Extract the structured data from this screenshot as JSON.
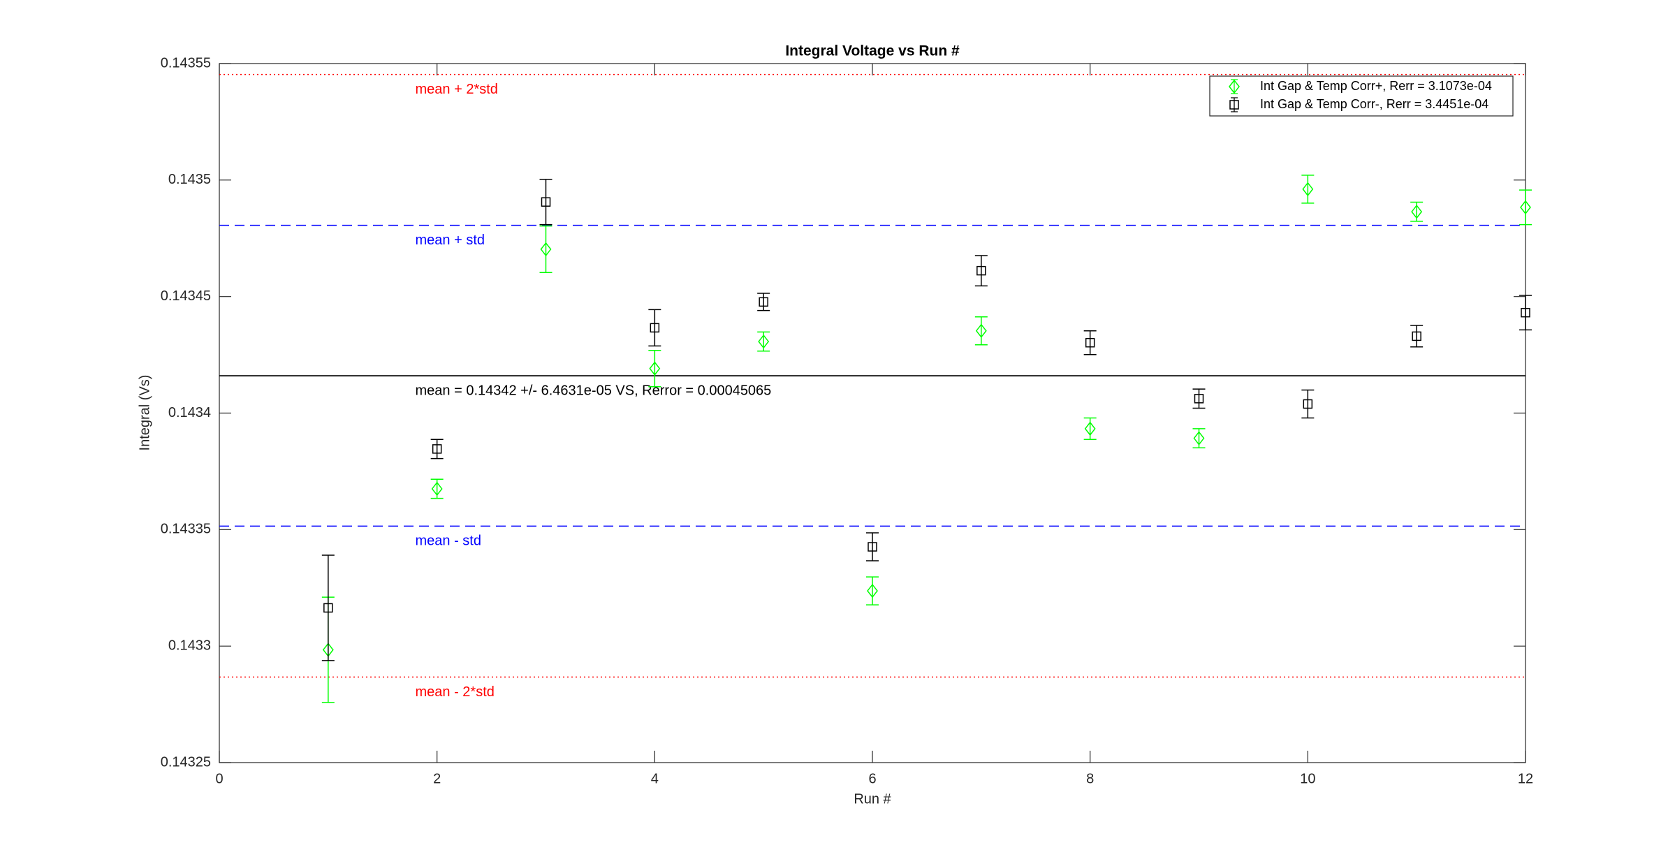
{
  "chart_data": {
    "type": "errorbar",
    "title": "Integral Voltage vs Run #",
    "xlabel": "Run #",
    "ylabel": "Integral (Vs)",
    "x": [
      1,
      2,
      3,
      4,
      5,
      6,
      7,
      8,
      9,
      10,
      11,
      12
    ],
    "series": [
      {
        "name": "Int Gap & Temp Corr+, Rerr = 3.1073e-04",
        "color": "#00ff00",
        "marker": "diamond",
        "values": [
          0.1432984,
          0.1433675,
          0.1434703,
          0.1434191,
          0.1434307,
          0.1433237,
          0.1434353,
          0.1433933,
          0.1433892,
          0.1434961,
          0.1434864,
          0.1434883
        ],
        "errors": [
          2.26e-05,
          4.1e-06,
          1e-05,
          7.8e-06,
          4.1e-06,
          6e-06,
          6e-06,
          4.6e-06,
          4.1e-06,
          6e-06,
          4.1e-06,
          7.4e-06
        ]
      },
      {
        "name": "Int Gap & Temp Corr-, Rerr = 3.4451e-04",
        "color": "#000000",
        "marker": "square",
        "values": [
          0.1433164,
          0.1433846,
          0.1434906,
          0.1434366,
          0.1434477,
          0.1433426,
          0.1434611,
          0.1434302,
          0.1434062,
          0.1434039,
          0.143433,
          0.1434431
        ],
        "errors": [
          2.26e-05,
          4.1e-06,
          9.7e-06,
          7.8e-06,
          3.7e-06,
          6e-06,
          6.5e-06,
          5.1e-06,
          4.1e-06,
          6e-06,
          4.6e-06,
          7.4e-06
        ]
      }
    ],
    "lines": [
      {
        "label": "mean + 2*std",
        "value": 0.1435453,
        "color": "#ff0000",
        "style": "dotted"
      },
      {
        "label": "mean + std",
        "value": 0.1434806,
        "color": "#0000ff",
        "style": "dashed"
      },
      {
        "label": "mean = 0.14342 +/- 6.4631e-05 VS, Rerror = 0.00045065",
        "value": 0.143416,
        "color": "#000000",
        "style": "solid"
      },
      {
        "label": "mean - std",
        "value": 0.1433515,
        "color": "#0000ff",
        "style": "dashed"
      },
      {
        "label": "mean - 2*std",
        "value": 0.1432867,
        "color": "#ff0000",
        "style": "dotted"
      }
    ],
    "xlim": [
      0,
      12
    ],
    "xticks": [
      0,
      2,
      4,
      6,
      8,
      10,
      12
    ],
    "ylim": [
      0.14325,
      0.14355
    ],
    "yticks": [
      0.14325,
      0.1433,
      0.14335,
      0.1434,
      0.14345,
      0.1435,
      0.14355
    ],
    "legend": "northeast"
  }
}
